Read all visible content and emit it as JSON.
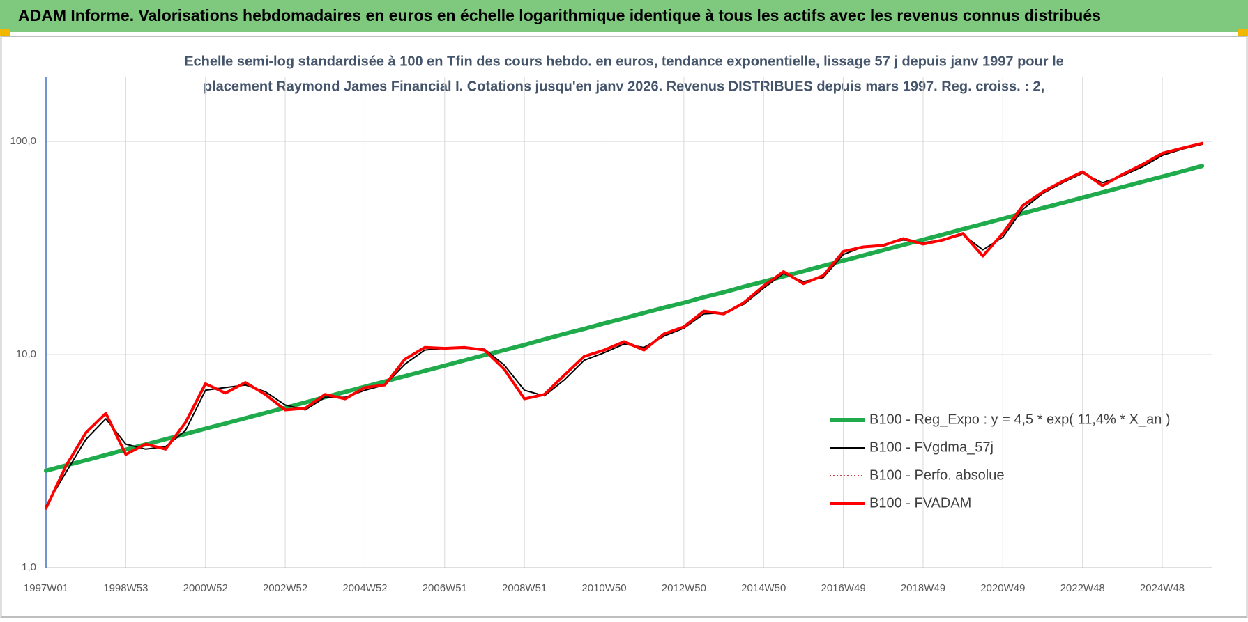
{
  "chart_data": {
    "type": "line",
    "title": "ADAM Informe. Valorisations hebdomadaires en euros en échelle logarithmique identique à tous les actifs avec les revenus connus distribués",
    "subtitle": [
      "Echelle semi-log standardisée à 100 en Tfin des cours hebdo. en euros, tendance exponentielle, lissage 57 j depuis janv 1997 pour le",
      "placement Raymond James Financial I. Cotations jusqu'en janv 2026. Revenus DISTRIBUES depuis mars 1997. Reg. croiss. : 2,"
    ],
    "categories": [
      "1997W01",
      null,
      null,
      null,
      "1998W53",
      null,
      null,
      null,
      "2000W52",
      null,
      null,
      null,
      "2002W52",
      null,
      null,
      null,
      "2004W52",
      null,
      null,
      null,
      "2006W51",
      null,
      null,
      null,
      "2008W51",
      null,
      null,
      null,
      "2010W50",
      null,
      null,
      null,
      "2012W50",
      null,
      null,
      null,
      "2014W50",
      null,
      null,
      null,
      "2016W49",
      null,
      null,
      null,
      "2018W49",
      null,
      null,
      null,
      "2020W49",
      null,
      null,
      null,
      "2022W48",
      null,
      null,
      null,
      "2024W48",
      null,
      null
    ],
    "log_scale": true,
    "ylim": [
      1,
      200
    ],
    "yticks": [
      {
        "value": 1,
        "label": "1,0"
      },
      {
        "value": 10,
        "label": "10,0"
      },
      {
        "value": 100,
        "label": "100,0"
      }
    ],
    "grid": true,
    "legend": "lower right",
    "series": [
      {
        "name": "B100 - Reg_Expo : y = 4,5 * exp( 11,4% *  X_an )",
        "color": "#1faa4c",
        "width": 6,
        "dash": "solid",
        "values": [
          2.85,
          3.02,
          3.19,
          3.38,
          3.58,
          3.79,
          4.01,
          4.24,
          4.49,
          4.75,
          5.03,
          5.32,
          5.63,
          5.96,
          6.31,
          6.68,
          7.07,
          7.48,
          7.92,
          8.38,
          8.87,
          9.39,
          9.94,
          10.5,
          11.1,
          11.8,
          12.5,
          13.2,
          14.0,
          14.8,
          15.7,
          16.6,
          17.5,
          18.6,
          19.6,
          20.8,
          22.0,
          23.3,
          24.6,
          26.1,
          27.6,
          29.2,
          30.9,
          32.7,
          34.6,
          36.6,
          38.8,
          41.0,
          43.4,
          46.0,
          48.7,
          51.5,
          54.5,
          57.7,
          61.1,
          64.7,
          68.4,
          72.4,
          76.7
        ]
      },
      {
        "name": "B100 - FVgdma_57j",
        "color": "#000000",
        "width": 2,
        "dash": "solid",
        "values": [
          1.95,
          2.8,
          4.0,
          5.0,
          3.8,
          3.6,
          3.7,
          4.4,
          6.8,
          7.0,
          7.2,
          6.7,
          5.8,
          5.5,
          6.3,
          6.3,
          6.8,
          7.2,
          9.0,
          10.5,
          10.7,
          10.7,
          10.6,
          8.9,
          6.8,
          6.4,
          7.6,
          9.4,
          10.2,
          11.2,
          10.8,
          12.2,
          13.3,
          15.5,
          15.7,
          17.2,
          20.5,
          24.0,
          22.0,
          23.0,
          29.5,
          32.0,
          32.8,
          34.5,
          33.5,
          34.5,
          36.5,
          31.0,
          35.5,
          48.0,
          57,
          64,
          71,
          64,
          69,
          76,
          86,
          92,
          97
        ]
      },
      {
        "name": "B100 - Perfo. absolue",
        "color": "#c00000",
        "width": 1.5,
        "dash": "dotted",
        "values": [
          1.9,
          3.0,
          4.3,
          5.3,
          3.4,
          3.8,
          3.6,
          4.8,
          7.3,
          6.6,
          7.4,
          6.5,
          5.5,
          5.6,
          6.5,
          6.2,
          7.0,
          7.2,
          9.5,
          10.8,
          10.7,
          10.8,
          10.5,
          8.5,
          6.2,
          6.5,
          8.0,
          9.8,
          10.5,
          11.5,
          10.5,
          12.5,
          13.5,
          16.0,
          15.5,
          17.5,
          21.0,
          24.5,
          21.5,
          23.5,
          30.5,
          32.0,
          32.5,
          35.0,
          33.0,
          34.5,
          37.0,
          29.0,
          37.0,
          50.0,
          58.0,
          65.0,
          72.0,
          62.0,
          70.0,
          78.0,
          88.0,
          93.0,
          98.0
        ]
      },
      {
        "name": "B100 - FVADAM",
        "color": "#ff0000",
        "width": 4,
        "dash": "solid",
        "values": [
          1.9,
          3.0,
          4.3,
          5.3,
          3.4,
          3.8,
          3.6,
          4.8,
          7.3,
          6.6,
          7.4,
          6.5,
          5.5,
          5.6,
          6.5,
          6.2,
          7.0,
          7.2,
          9.5,
          10.8,
          10.7,
          10.8,
          10.5,
          8.5,
          6.2,
          6.5,
          8.0,
          9.8,
          10.5,
          11.5,
          10.5,
          12.5,
          13.5,
          16.0,
          15.5,
          17.5,
          21.0,
          24.5,
          21.5,
          23.5,
          30.5,
          32.0,
          32.5,
          35.0,
          33.0,
          34.5,
          37.0,
          29.0,
          37.0,
          50.0,
          58.0,
          65.0,
          72.0,
          62.0,
          70.0,
          78.0,
          88.0,
          93.0,
          98.0
        ]
      }
    ]
  }
}
